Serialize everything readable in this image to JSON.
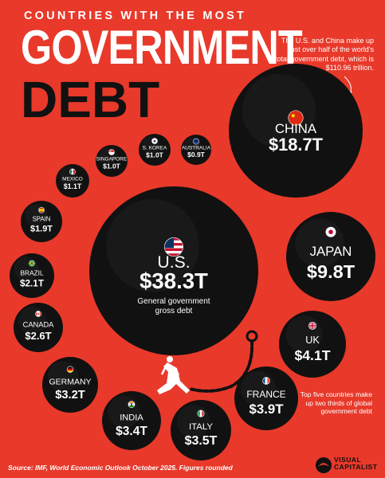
{
  "header": {
    "kicker": "COUNTRIES WITH THE MOST",
    "title_line1": "GOVERNMENT",
    "title_line2": "DEBT"
  },
  "annotations": {
    "top_note": "The U.S. and China make up just over half of the world's total government debt, which is $110.96 trillion.",
    "bottom_note": "Top five countries make up two thirds of global government debt",
    "us_note": "General government gross debt"
  },
  "footer": {
    "source": "Source: IMF, World Economic Outlook October 2025. Figures rounded",
    "brand_line1": "VISUAL",
    "brand_line2": "CAPITALIST"
  },
  "colors": {
    "background": "#e8392a",
    "ball": "#111111",
    "text_light": "#ffffff"
  },
  "chart_data": {
    "type": "bubble",
    "unit": "trillion USD",
    "points": [
      {
        "country": "U.S.",
        "value": 38.3,
        "label": "$38.3T",
        "flag": "us-flag-icon"
      },
      {
        "country": "CHINA",
        "value": 18.7,
        "label": "$18.7T",
        "flag": "china-flag-icon"
      },
      {
        "country": "JAPAN",
        "value": 9.8,
        "label": "$9.8T",
        "flag": "japan-flag-icon"
      },
      {
        "country": "UK",
        "value": 4.1,
        "label": "$4.1T",
        "flag": "uk-flag-icon"
      },
      {
        "country": "FRANCE",
        "value": 3.9,
        "label": "$3.9T",
        "flag": "france-flag-icon"
      },
      {
        "country": "ITALY",
        "value": 3.5,
        "label": "$3.5T",
        "flag": "italy-flag-icon"
      },
      {
        "country": "INDIA",
        "value": 3.4,
        "label": "$3.4T",
        "flag": "india-flag-icon"
      },
      {
        "country": "GERMANY",
        "value": 3.2,
        "label": "$3.2T",
        "flag": "germany-flag-icon"
      },
      {
        "country": "CANADA",
        "value": 2.6,
        "label": "$2.6T",
        "flag": "canada-flag-icon"
      },
      {
        "country": "BRAZIL",
        "value": 2.1,
        "label": "$2.1T",
        "flag": "brazil-flag-icon"
      },
      {
        "country": "SPAIN",
        "value": 1.9,
        "label": "$1.9T",
        "flag": "spain-flag-icon"
      },
      {
        "country": "MEXICO",
        "value": 1.1,
        "label": "$1.1T",
        "flag": "mexico-flag-icon"
      },
      {
        "country": "SINGAPORE",
        "value": 1.0,
        "label": "$1.0T",
        "flag": "singapore-flag-icon"
      },
      {
        "country": "S. KOREA",
        "value": 1.0,
        "label": "$1.0T",
        "flag": "south-korea-flag-icon"
      },
      {
        "country": "AUSTRALIA",
        "value": 0.9,
        "label": "$0.9T",
        "flag": "australia-flag-icon"
      }
    ]
  }
}
